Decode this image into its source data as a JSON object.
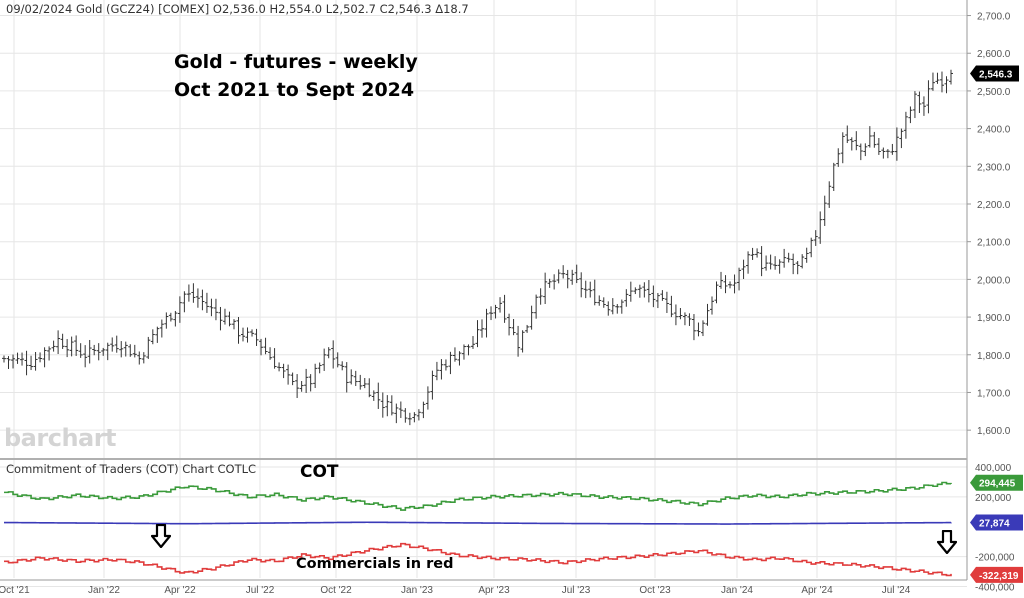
{
  "header": {
    "quote_line": "09/02/2024 Gold (GCZ24) [COMEX] O2,536.0 H2,554.0 L2,502.7 C2,546.3 Δ18.7"
  },
  "annotations": {
    "title_line1": "Gold - futures - weekly",
    "title_line2": "Oct 2021 to Sept 2024",
    "cot_label": "COT",
    "commercials_label": "Commercials in red"
  },
  "logo": {
    "text": "barchart"
  },
  "cot_header": "Commitment of Traders (COT) Chart COTLC",
  "icons": [
    "arrow-down-icon",
    "arrow-down-icon"
  ],
  "colors": {
    "price_bars": "#333333",
    "cot_green": "#3a9a3a",
    "cot_blue": "#3a3ab8",
    "cot_red": "#e03c3c",
    "last_price_badge": "#000000"
  },
  "chart_data": [
    {
      "type": "ohlc",
      "title": "Gold - futures - weekly",
      "subtitle": "Oct 2021 to Sept 2024",
      "ylim": [
        1550,
        2720
      ],
      "y_ticks": [
        "2,700.0",
        "2,600.0",
        "2,500.0",
        "2,400.0",
        "2,300.0",
        "2,200.0",
        "2,100.0",
        "2,000.0",
        "1,900.0",
        "1,800.0",
        "1,700.0",
        "1,600.0"
      ],
      "x_tick_labels": [
        "Oct '21",
        "Jan '22",
        "Apr '22",
        "Jul '22",
        "Oct '22",
        "Jan '23",
        "Apr '23",
        "Jul '23",
        "Oct '23",
        "Jan '24",
        "Apr '24",
        "Jul '24"
      ],
      "last_price_label": "2,546.3",
      "last_price": 2546.3,
      "anchors": [
        [
          0,
          1790
        ],
        [
          6,
          1780
        ],
        [
          12,
          1840
        ],
        [
          18,
          1800
        ],
        [
          22,
          1820
        ],
        [
          26,
          1830
        ],
        [
          30,
          1790
        ],
        [
          34,
          1870
        ],
        [
          38,
          1920
        ],
        [
          40,
          1960
        ],
        [
          43,
          1950
        ],
        [
          46,
          1920
        ],
        [
          50,
          1890
        ],
        [
          52,
          1860
        ],
        [
          56,
          1840
        ],
        [
          60,
          1780
        ],
        [
          64,
          1720
        ],
        [
          68,
          1730
        ],
        [
          72,
          1810
        ],
        [
          76,
          1740
        ],
        [
          80,
          1720
        ],
        [
          84,
          1670
        ],
        [
          88,
          1650
        ],
        [
          91,
          1640
        ],
        [
          93,
          1680
        ],
        [
          96,
          1760
        ],
        [
          100,
          1800
        ],
        [
          104,
          1830
        ],
        [
          108,
          1920
        ],
        [
          110,
          1940
        ],
        [
          112,
          1880
        ],
        [
          114,
          1830
        ],
        [
          116,
          1880
        ],
        [
          118,
          1960
        ],
        [
          120,
          1980
        ],
        [
          124,
          2010
        ],
        [
          126,
          2000
        ],
        [
          128,
          1980
        ],
        [
          130,
          1960
        ],
        [
          134,
          1930
        ],
        [
          138,
          1950
        ],
        [
          140,
          1980
        ],
        [
          144,
          1950
        ],
        [
          148,
          1920
        ],
        [
          152,
          1890
        ],
        [
          154,
          1860
        ],
        [
          156,
          1920
        ],
        [
          158,
          1980
        ],
        [
          162,
          1990
        ],
        [
          164,
          2040
        ],
        [
          166,
          2080
        ],
        [
          168,
          2040
        ],
        [
          170,
          2030
        ],
        [
          172,
          2040
        ],
        [
          174,
          2050
        ],
        [
          176,
          2030
        ],
        [
          178,
          2060
        ],
        [
          180,
          2120
        ],
        [
          182,
          2210
        ],
        [
          184,
          2300
        ],
        [
          186,
          2380
        ],
        [
          188,
          2360
        ],
        [
          190,
          2340
        ],
        [
          192,
          2380
        ],
        [
          194,
          2340
        ],
        [
          196,
          2330
        ],
        [
          198,
          2370
        ],
        [
          200,
          2420
        ],
        [
          202,
          2480
        ],
        [
          204,
          2460
        ],
        [
          206,
          2530
        ],
        [
          208,
          2530
        ],
        [
          210,
          2546.3
        ]
      ]
    },
    {
      "type": "line",
      "title": "Commitment of Traders (COT) Chart COTLC",
      "ylim": [
        -330000,
        420000
      ],
      "y_ticks": [
        "400,000",
        "200,000",
        "-200,000",
        "-400,000"
      ],
      "series": [
        {
          "name": "",
          "last_value_label": "294,445",
          "anchors": [
            [
              0,
              230000
            ],
            [
              8,
              185000
            ],
            [
              16,
              210000
            ],
            [
              24,
              190000
            ],
            [
              30,
              200000
            ],
            [
              40,
              270000
            ],
            [
              46,
              250000
            ],
            [
              54,
              200000
            ],
            [
              60,
              215000
            ],
            [
              66,
              180000
            ],
            [
              72,
              200000
            ],
            [
              80,
              160000
            ],
            [
              88,
              120000
            ],
            [
              94,
              140000
            ],
            [
              100,
              180000
            ],
            [
              108,
              200000
            ],
            [
              116,
              210000
            ],
            [
              124,
              220000
            ],
            [
              132,
              200000
            ],
            [
              140,
              190000
            ],
            [
              148,
              170000
            ],
            [
              154,
              150000
            ],
            [
              160,
              190000
            ],
            [
              166,
              210000
            ],
            [
              172,
              200000
            ],
            [
              178,
              220000
            ],
            [
              186,
              230000
            ],
            [
              194,
              240000
            ],
            [
              202,
              260000
            ],
            [
              206,
              280000
            ],
            [
              210,
              294445
            ]
          ]
        },
        {
          "name": "",
          "last_value_label": "27,874",
          "anchors": [
            [
              0,
              28000
            ],
            [
              40,
              20000
            ],
            [
              80,
              30000
            ],
            [
              120,
              22000
            ],
            [
              160,
              18000
            ],
            [
              210,
              27874
            ]
          ]
        },
        {
          "name": "",
          "last_value_label": "-322,319",
          "anchors": [
            [
              0,
              -240000
            ],
            [
              8,
              -210000
            ],
            [
              16,
              -230000
            ],
            [
              24,
              -220000
            ],
            [
              30,
              -240000
            ],
            [
              40,
              -310000
            ],
            [
              46,
              -280000
            ],
            [
              54,
              -220000
            ],
            [
              60,
              -230000
            ],
            [
              66,
              -190000
            ],
            [
              72,
              -210000
            ],
            [
              80,
              -160000
            ],
            [
              88,
              -120000
            ],
            [
              94,
              -150000
            ],
            [
              100,
              -190000
            ],
            [
              108,
              -210000
            ],
            [
              116,
              -220000
            ],
            [
              124,
              -240000
            ],
            [
              132,
              -215000
            ],
            [
              140,
              -200000
            ],
            [
              148,
              -180000
            ],
            [
              154,
              -160000
            ],
            [
              160,
              -200000
            ],
            [
              166,
              -220000
            ],
            [
              172,
              -210000
            ],
            [
              178,
              -240000
            ],
            [
              186,
              -250000
            ],
            [
              194,
              -270000
            ],
            [
              200,
              -290000
            ],
            [
              206,
              -310000
            ],
            [
              210,
              -322319
            ]
          ]
        }
      ]
    }
  ]
}
